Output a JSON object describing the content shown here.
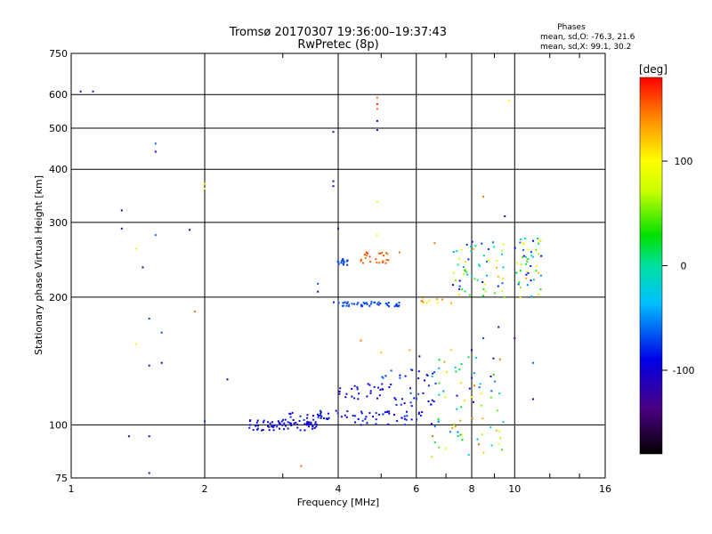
{
  "chart_data": {
    "type": "scatter",
    "title": "Tromsø 20170307 19:36:00–19:37:43",
    "subtitle": "RwPretec (8p)",
    "xlabel": "Frequency [MHz]",
    "ylabel": "Stationary phase Virtual Height [km]",
    "xscale": "log",
    "yscale": "log",
    "xlim": [
      1,
      16
    ],
    "ylim": [
      75,
      750
    ],
    "xticks": [
      1,
      2,
      4,
      6,
      8,
      10,
      16
    ],
    "yticks": [
      75,
      100,
      200,
      300,
      400,
      500,
      600,
      750
    ],
    "grid": true,
    "stats": {
      "heading": "Phases",
      "line_o": "mean, sd,O:  -76.3, 21.6",
      "line_x": "mean, sd,X:  99.1, 30.2"
    },
    "colorbar": {
      "label": "[deg]",
      "range": [
        -180,
        180
      ],
      "ticks": [
        100,
        0,
        -100
      ],
      "tick_labels": [
        "100",
        "0",
        "-100"
      ]
    },
    "series": [
      {
        "name": "Phases",
        "points": [
          [
            1.05,
            610,
            -110
          ],
          [
            1.12,
            610,
            -110
          ],
          [
            1.3,
            320,
            -110
          ],
          [
            1.3,
            290,
            -120
          ],
          [
            1.4,
            260,
            90
          ],
          [
            1.45,
            235,
            -110
          ],
          [
            1.5,
            178,
            -70
          ],
          [
            1.5,
            138,
            -110
          ],
          [
            1.55,
            460,
            -60
          ],
          [
            1.55,
            440,
            -100
          ],
          [
            1.55,
            280,
            -60
          ],
          [
            1.6,
            165,
            -70
          ],
          [
            1.6,
            140,
            -110
          ],
          [
            1.4,
            155,
            100
          ],
          [
            1.85,
            288,
            -110
          ],
          [
            1.9,
            185,
            150
          ],
          [
            2.0,
            370,
            100
          ],
          [
            2.0,
            360,
            100
          ],
          [
            2.25,
            128,
            -110
          ],
          [
            2.0,
            102,
            -70
          ],
          [
            1.35,
            94,
            -110
          ],
          [
            1.5,
            94,
            -110
          ],
          [
            1.5,
            77,
            -110
          ],
          [
            3.9,
            490,
            -110
          ],
          [
            3.9,
            375,
            -110
          ],
          [
            3.9,
            365,
            -100
          ],
          [
            4.0,
            290,
            -110
          ],
          [
            3.6,
            215,
            -70
          ],
          [
            3.6,
            206,
            -110
          ],
          [
            4.9,
            590,
            150
          ],
          [
            4.9,
            570,
            170
          ],
          [
            4.9,
            555,
            150
          ],
          [
            4.9,
            520,
            -110
          ],
          [
            4.9,
            495,
            -110
          ],
          [
            4.9,
            335,
            90
          ],
          [
            4.9,
            280,
            100
          ],
          [
            5.5,
            255,
            150
          ],
          [
            6.6,
            268,
            150
          ],
          [
            8.5,
            345,
            150
          ],
          [
            9.5,
            310,
            -120
          ],
          [
            10.5,
            250,
            -100
          ],
          [
            11.5,
            250,
            -50
          ],
          [
            3.4,
            100,
            -100
          ],
          [
            3.3,
            80,
            150
          ],
          [
            4.5,
            158,
            150
          ],
          [
            5.0,
            148,
            120
          ],
          [
            5.8,
            150,
            130
          ],
          [
            6.1,
            145,
            -120
          ],
          [
            7.2,
            150,
            120
          ],
          [
            8.0,
            150,
            -110
          ],
          [
            8.5,
            160,
            -70
          ],
          [
            9.2,
            170,
            -110
          ],
          [
            10.0,
            160,
            -130
          ],
          [
            11.0,
            140,
            -60
          ],
          [
            11.0,
            115,
            -100
          ],
          [
            9.7,
            580,
            100
          ],
          [
            8.3,
            90,
            150
          ],
          [
            7.0,
            88,
            100
          ],
          [
            6.5,
            84,
            120
          ]
        ]
      }
    ],
    "clusters": [
      {
        "x_range": [
          2.5,
          3.6
        ],
        "y_range": [
          97,
          103
        ],
        "count": 60,
        "phase_range": [
          -110,
          -80
        ]
      },
      {
        "x_range": [
          3.0,
          4.0
        ],
        "y_range": [
          100,
          108
        ],
        "count": 40,
        "phase_range": [
          -110,
          -70
        ]
      },
      {
        "x_range": [
          4.0,
          6.5
        ],
        "y_range": [
          100,
          108
        ],
        "count": 45,
        "phase_range": [
          -110,
          -70
        ]
      },
      {
        "x_range": [
          4.0,
          5.2
        ],
        "y_range": [
          115,
          125
        ],
        "count": 25,
        "phase_range": [
          -110,
          -80
        ]
      },
      {
        "x_range": [
          5.0,
          6.8
        ],
        "y_range": [
          110,
          135
        ],
        "count": 40,
        "phase_range": [
          -110,
          -60
        ]
      },
      {
        "x_range": [
          6.5,
          9.5
        ],
        "y_range": [
          85,
          145
        ],
        "count": 70,
        "phase_range": [
          -110,
          150
        ]
      },
      {
        "x_range": [
          3.9,
          5.6
        ],
        "y_range": [
          190,
          195
        ],
        "count": 45,
        "phase_range": [
          -80,
          -60
        ]
      },
      {
        "x_range": [
          3.9,
          4.2
        ],
        "y_range": [
          238,
          246
        ],
        "count": 15,
        "phase_range": [
          -80,
          -60
        ]
      },
      {
        "x_range": [
          4.5,
          5.2
        ],
        "y_range": [
          240,
          255
        ],
        "count": 25,
        "phase_range": [
          140,
          170
        ]
      },
      {
        "x_range": [
          7.2,
          9.5
        ],
        "y_range": [
          200,
          270
        ],
        "count": 60,
        "phase_range": [
          -110,
          150
        ]
      },
      {
        "x_range": [
          10.0,
          11.5
        ],
        "y_range": [
          200,
          275
        ],
        "count": 50,
        "phase_range": [
          -110,
          130
        ]
      },
      {
        "x_range": [
          6.0,
          7.3
        ],
        "y_range": [
          193,
          200
        ],
        "count": 10,
        "phase_range": [
          100,
          150
        ]
      }
    ]
  }
}
